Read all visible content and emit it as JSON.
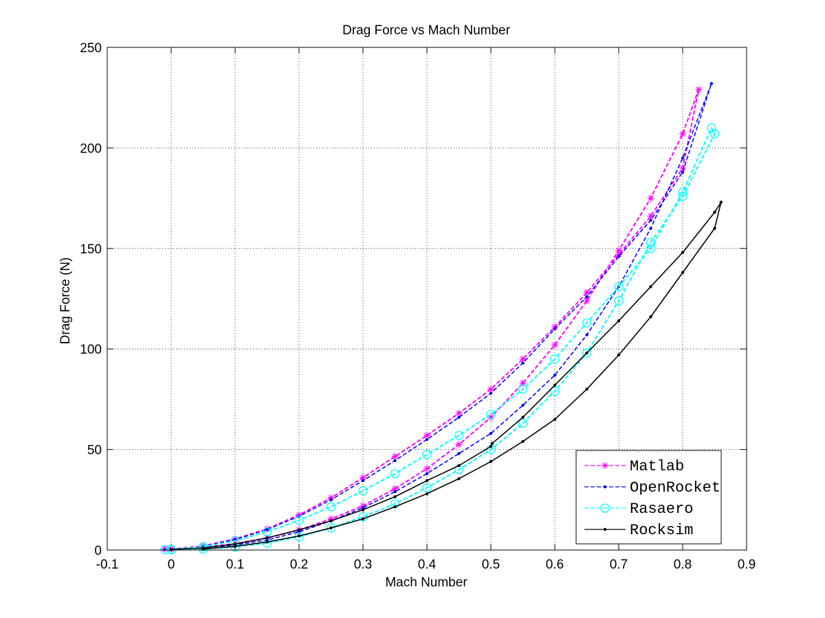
{
  "chart_data": {
    "type": "line",
    "title": "Drag Force vs Mach Number",
    "xlabel": "Mach Number",
    "ylabel": "Drag Force (N)",
    "xlim": [
      -0.1,
      0.9
    ],
    "ylim": [
      0,
      250
    ],
    "x_ticks": [
      -0.1,
      0,
      0.1,
      0.2,
      0.3,
      0.4,
      0.5,
      0.6,
      0.7,
      0.8,
      0.9
    ],
    "x_tick_labels": [
      "-0.1",
      "0",
      "0.1",
      "0.2",
      "0.3",
      "0.4",
      "0.5",
      "0.6",
      "0.7",
      "0.8",
      "0.9"
    ],
    "y_ticks": [
      0,
      50,
      100,
      150,
      200,
      250
    ],
    "y_tick_labels": [
      "0",
      "50",
      "100",
      "150",
      "200",
      "250"
    ],
    "grid": true,
    "legend_position": "bottom-right",
    "series": [
      {
        "name": "Matlab",
        "color": "#ff00ff",
        "marker": "asterisk",
        "linestyle": "dashed",
        "x": [
          -0.01,
          0.0,
          0.05,
          0.1,
          0.15,
          0.2,
          0.25,
          0.3,
          0.35,
          0.4,
          0.45,
          0.5,
          0.55,
          0.6,
          0.65,
          0.7,
          0.75,
          0.8,
          0.825,
          0.8,
          0.75,
          0.7,
          0.65,
          0.6,
          0.55,
          0.5,
          0.45,
          0.4,
          0.35,
          0.3,
          0.25,
          0.2,
          0.15,
          0.1,
          0.05,
          0.0
        ],
        "y": [
          0.5,
          0.5,
          2.0,
          5.5,
          10.5,
          17.5,
          26.0,
          36.0,
          46.5,
          57.0,
          68.0,
          80.0,
          95.0,
          111.0,
          128.0,
          147.0,
          166.0,
          190.0,
          229.0,
          207.0,
          175.0,
          149.0,
          124.0,
          102.0,
          83.0,
          66.0,
          52.5,
          40.5,
          30.5,
          22.0,
          15.5,
          10.0,
          6.0,
          3.2,
          1.3,
          0.3
        ]
      },
      {
        "name": "OpenRocket",
        "color": "#0000ff",
        "marker": "dot",
        "linestyle": "dashed",
        "x": [
          -0.01,
          0.0,
          0.05,
          0.1,
          0.15,
          0.2,
          0.25,
          0.3,
          0.35,
          0.4,
          0.45,
          0.5,
          0.55,
          0.6,
          0.65,
          0.7,
          0.75,
          0.8,
          0.845,
          0.8,
          0.75,
          0.7,
          0.65,
          0.6,
          0.55,
          0.5,
          0.45,
          0.4,
          0.35,
          0.3,
          0.25,
          0.2,
          0.15,
          0.1,
          0.05,
          0.0
        ],
        "y": [
          0.3,
          0.3,
          1.8,
          5.2,
          10.2,
          16.8,
          25.0,
          34.5,
          44.5,
          55.0,
          66.0,
          78.0,
          93.0,
          110.0,
          126.0,
          146.0,
          164.0,
          188.0,
          232.0,
          195.0,
          160.0,
          131.0,
          107.0,
          87.0,
          72.0,
          58.0,
          48.0,
          38.0,
          29.0,
          21.0,
          14.5,
          9.0,
          5.0,
          2.5,
          1.0,
          0.2
        ]
      },
      {
        "name": "Rasaero",
        "color": "#00ffff",
        "marker": "circle",
        "linestyle": "dashed",
        "x": [
          -0.01,
          0.0,
          0.05,
          0.1,
          0.15,
          0.2,
          0.25,
          0.3,
          0.35,
          0.4,
          0.45,
          0.5,
          0.55,
          0.6,
          0.65,
          0.7,
          0.75,
          0.8,
          0.845,
          0.85,
          0.8,
          0.75,
          0.7,
          0.65,
          0.6,
          0.55,
          0.5,
          0.45,
          0.4,
          0.35,
          0.3,
          0.25,
          0.2,
          0.15,
          0.1,
          0.05,
          0.0
        ],
        "y": [
          0.2,
          0.3,
          1.6,
          4.6,
          9.0,
          14.8,
          21.5,
          29.5,
          38.0,
          47.5,
          57.0,
          67.5,
          80.0,
          95.0,
          113.0,
          131.0,
          150.0,
          178.0,
          210.0,
          207.0,
          176.0,
          153.0,
          124.0,
          98.0,
          79.0,
          63.0,
          50.0,
          40.0,
          31.0,
          23.0,
          16.5,
          11.0,
          6.5,
          3.5,
          1.5,
          0.5,
          0.1
        ]
      },
      {
        "name": "Rocksim",
        "color": "#000000",
        "marker": "dot",
        "linestyle": "solid",
        "x": [
          0.0,
          0.05,
          0.1,
          0.15,
          0.2,
          0.25,
          0.3,
          0.35,
          0.4,
          0.45,
          0.5,
          0.502,
          0.55,
          0.6,
          0.65,
          0.7,
          0.75,
          0.8,
          0.85,
          0.86,
          0.85,
          0.8,
          0.75,
          0.7,
          0.65,
          0.6,
          0.55,
          0.5,
          0.45,
          0.4,
          0.35,
          0.3,
          0.25,
          0.2,
          0.15,
          0.1,
          0.05
        ],
        "y": [
          0.3,
          1.0,
          3.0,
          6.0,
          10.0,
          14.5,
          20.0,
          26.5,
          34.5,
          42.0,
          51.5,
          53.0,
          66.0,
          82.0,
          98.0,
          114.0,
          131.0,
          148.0,
          168.0,
          173.0,
          160.0,
          138.0,
          116.0,
          97.0,
          80.0,
          65.0,
          54.0,
          44.0,
          35.5,
          28.0,
          21.5,
          15.5,
          11.0,
          7.0,
          4.0,
          1.8,
          0.5
        ]
      }
    ]
  }
}
